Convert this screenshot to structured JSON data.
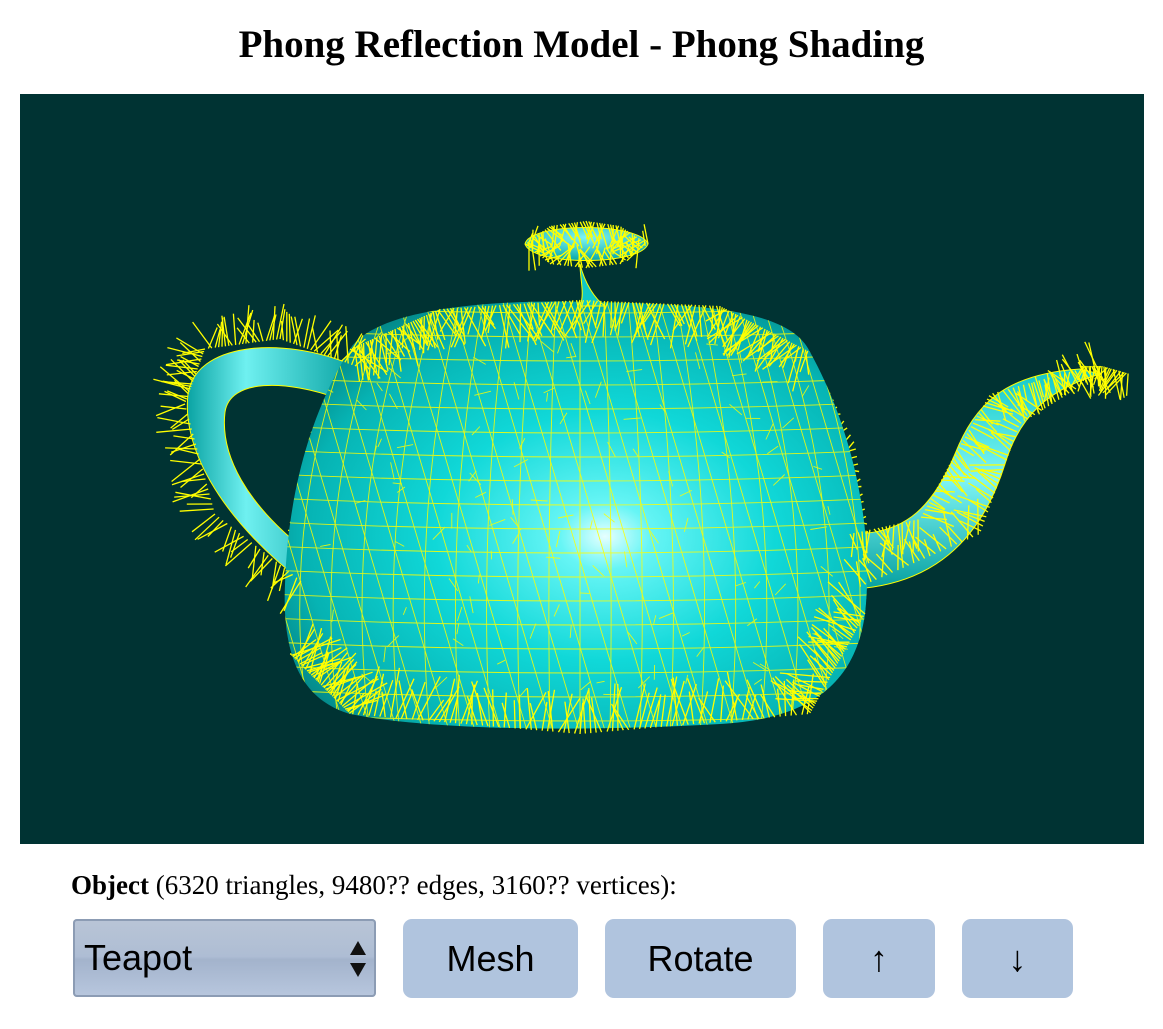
{
  "page": {
    "title": "Phong Reflection Model - Phong Shading"
  },
  "viewport": {
    "background_color": "#003333",
    "object_color": "#00e5e5",
    "wire_color": "#ffff00",
    "render_mode": "phong-shaded mesh with vertex normals"
  },
  "object_info": {
    "label": "Object",
    "details": "(6320 triangles, 9480?? edges, 3160?? vertices):"
  },
  "controls": {
    "object_select": {
      "value": "Teapot"
    },
    "mesh_button": "Mesh",
    "rotate_button": "Rotate",
    "up_button": "↑",
    "down_button": "↓"
  },
  "colors": {
    "button_bg": "#b0c4de",
    "title_text": "#000000"
  },
  "icons": {
    "select_arrows": "up-down-chevron-icon",
    "up": "arrow-up-icon",
    "down": "arrow-down-icon"
  }
}
